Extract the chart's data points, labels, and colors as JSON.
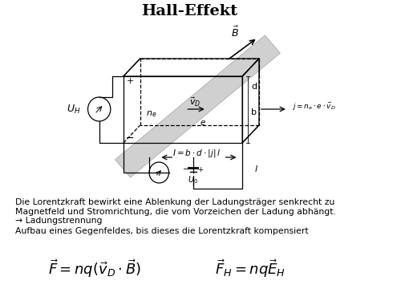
{
  "title": "Hall-Effekt",
  "title_fontsize": 14,
  "background_color": "#ffffff",
  "text_color": "#000000",
  "diagram_color": "#000000",
  "text_line1": "Die Lorentzkraft bewirkt eine Ablenkung der Ladungsträger senkrecht zu",
  "text_line2": "Magnetfeld und Stromrichtung, die vom Vorzeichen der Ladung abhängt.",
  "text_line3": "→ Ladungstrennung",
  "text_line4": "Aufbau eines Gegenfeldes, bis dieses die Lorentzkraft kompensiert"
}
